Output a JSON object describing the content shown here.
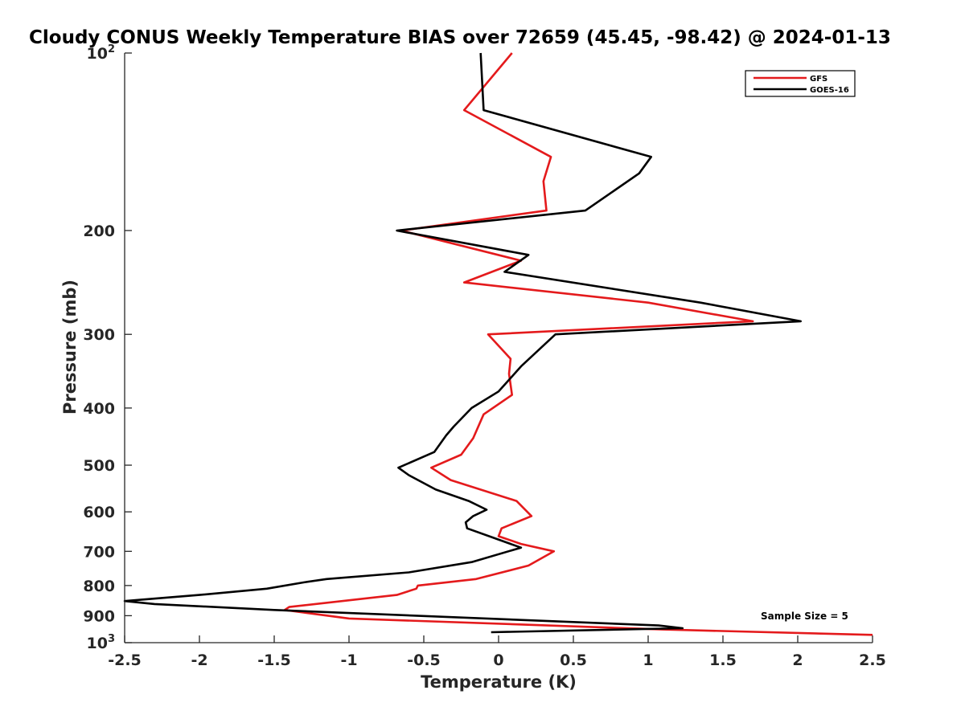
{
  "chart_data": {
    "type": "line",
    "title": "Cloudy CONUS Weekly Temperature BIAS over 72659 (45.45, -98.42) @ 2024-01-13",
    "xlabel": "Temperature (K)",
    "ylabel": "Pressure (mb)",
    "xlim": [
      -2.5,
      2.5
    ],
    "ylim": [
      100,
      1000
    ],
    "y_scale": "log",
    "y_reversed": true,
    "x_ticks": [
      -2.5,
      -2,
      -1.5,
      -1,
      -0.5,
      0,
      0.5,
      1,
      1.5,
      2,
      2.5
    ],
    "x_tick_labels": [
      "-2.5",
      "-2",
      "-1.5",
      "-1",
      "-0.5",
      "0",
      "0.5",
      "1",
      "1.5",
      "2",
      "2.5"
    ],
    "y_ticks": [
      {
        "value": 100,
        "label": "10",
        "sup": "2"
      },
      {
        "value": 200,
        "label": "200",
        "sup": ""
      },
      {
        "value": 300,
        "label": "300",
        "sup": ""
      },
      {
        "value": 400,
        "label": "400",
        "sup": ""
      },
      {
        "value": 500,
        "label": "500",
        "sup": ""
      },
      {
        "value": 600,
        "label": "600",
        "sup": ""
      },
      {
        "value": 700,
        "label": "700",
        "sup": ""
      },
      {
        "value": 800,
        "label": "800",
        "sup": ""
      },
      {
        "value": 900,
        "label": "900",
        "sup": ""
      },
      {
        "value": 1000,
        "label": "10",
        "sup": "3"
      }
    ],
    "grid": false,
    "legend_position": "top-right",
    "annotation": "Sample Size = 5",
    "series": [
      {
        "name": "GFS",
        "color": "#e41a1c",
        "points": [
          [
            0.09,
            100
          ],
          [
            -0.23,
            125
          ],
          [
            0.35,
            150
          ],
          [
            0.3,
            165
          ],
          [
            0.32,
            185
          ],
          [
            -0.65,
            200
          ],
          [
            0.15,
            225
          ],
          [
            -0.23,
            245
          ],
          [
            1.0,
            265
          ],
          [
            1.7,
            285
          ],
          [
            -0.07,
            300
          ],
          [
            0.08,
            330
          ],
          [
            0.07,
            350
          ],
          [
            0.09,
            380
          ],
          [
            -0.1,
            410
          ],
          [
            -0.17,
            450
          ],
          [
            -0.25,
            480
          ],
          [
            -0.45,
            505
          ],
          [
            -0.32,
            530
          ],
          [
            0.12,
            575
          ],
          [
            0.22,
            610
          ],
          [
            0.02,
            640
          ],
          [
            0.0,
            660
          ],
          [
            0.15,
            680
          ],
          [
            0.37,
            700
          ],
          [
            0.2,
            740
          ],
          [
            -0.15,
            780
          ],
          [
            -0.54,
            800
          ],
          [
            -0.55,
            810
          ],
          [
            -0.68,
            830
          ],
          [
            -1.4,
            870
          ],
          [
            -1.43,
            880
          ],
          [
            -1.0,
            910
          ],
          [
            1.1,
            950
          ],
          [
            2.5,
            970
          ]
        ]
      },
      {
        "name": "GOES-16",
        "color": "#000000",
        "points": [
          [
            -0.12,
            100
          ],
          [
            -0.1,
            125
          ],
          [
            1.02,
            150
          ],
          [
            0.94,
            160
          ],
          [
            0.58,
            185
          ],
          [
            -0.68,
            200
          ],
          [
            0.2,
            220
          ],
          [
            0.04,
            235
          ],
          [
            1.35,
            265
          ],
          [
            2.02,
            285
          ],
          [
            0.38,
            300
          ],
          [
            0.15,
            340
          ],
          [
            0.0,
            375
          ],
          [
            -0.18,
            400
          ],
          [
            -0.3,
            430
          ],
          [
            -0.35,
            445
          ],
          [
            -0.43,
            475
          ],
          [
            -0.67,
            505
          ],
          [
            -0.6,
            520
          ],
          [
            -0.42,
            550
          ],
          [
            -0.2,
            575
          ],
          [
            -0.08,
            595
          ],
          [
            -0.17,
            610
          ],
          [
            -0.22,
            625
          ],
          [
            -0.21,
            640
          ],
          [
            0.15,
            690
          ],
          [
            -0.18,
            730
          ],
          [
            -0.6,
            760
          ],
          [
            -1.15,
            780
          ],
          [
            -1.3,
            790
          ],
          [
            -1.55,
            810
          ],
          [
            -2.0,
            830
          ],
          [
            -2.5,
            850
          ],
          [
            -2.3,
            860
          ],
          [
            -1.5,
            880
          ],
          [
            1.07,
            935
          ],
          [
            1.23,
            945
          ],
          [
            -0.05,
            960
          ]
        ]
      }
    ]
  }
}
